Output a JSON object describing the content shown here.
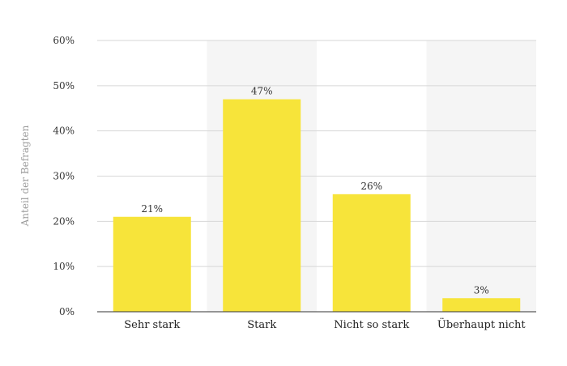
{
  "chart_data": {
    "type": "bar",
    "categories": [
      "Sehr stark",
      "Stark",
      "Nicht so stark",
      "Überhaupt nicht"
    ],
    "values": [
      21,
      47,
      26,
      3
    ],
    "value_labels": [
      "21%",
      "47%",
      "26%",
      "3%"
    ],
    "title": "",
    "xlabel": "",
    "ylabel": "Anteil der Befragten",
    "ylim": [
      0,
      60
    ],
    "yticks": [
      0,
      10,
      20,
      30,
      40,
      50,
      60
    ],
    "ytick_labels": [
      "0%",
      "10%",
      "20%",
      "30%",
      "40%",
      "50%",
      "60%"
    ],
    "grid": true,
    "legend": "none",
    "bar_color": "#f7e43a",
    "band_color": "#f5f5f5",
    "grid_color": "#d7d7d7",
    "axis_color": "#333333"
  }
}
